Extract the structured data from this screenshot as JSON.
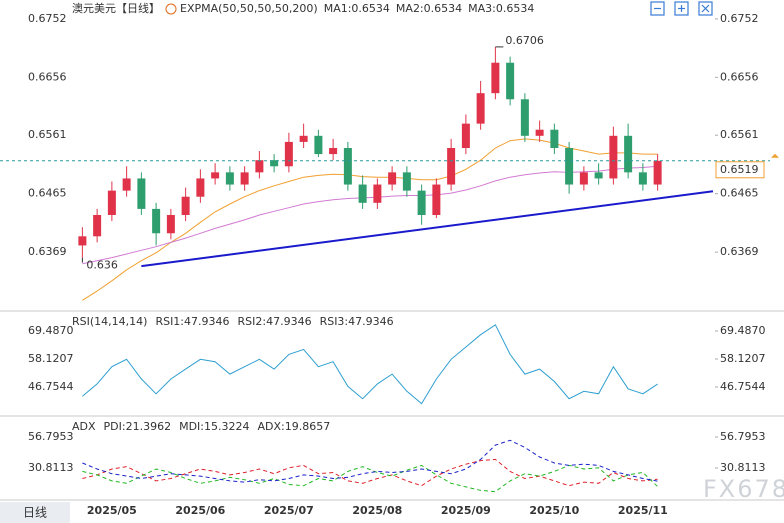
{
  "chart_data": [
    {
      "type": "candlestick",
      "title": "澳元美元",
      "period": "【日线】",
      "indicator": "EXPMA(50,50,50,50,200)",
      "legend": [
        {
          "name": "MA1:0.6534",
          "color": "#2f7fd0"
        },
        {
          "name": "MA2:0.6534",
          "color": "#29a0a0"
        },
        {
          "name": "MA3:0.6534",
          "color": "#2f7fd0"
        }
      ],
      "categories": [
        null,
        null,
        "2025/05",
        null,
        null,
        null,
        null,
        null,
        "2025/06",
        null,
        null,
        null,
        null,
        null,
        "2025/07",
        null,
        null,
        null,
        null,
        null,
        "2025/08",
        null,
        null,
        null,
        null,
        null,
        "2025/09",
        null,
        null,
        null,
        null,
        null,
        "2025/10",
        null,
        null,
        null,
        null,
        null,
        "2025/11",
        null
      ],
      "open": [
        0.638,
        0.6395,
        0.643,
        0.647,
        0.649,
        0.644,
        0.64,
        0.643,
        0.646,
        0.649,
        0.65,
        0.648,
        0.65,
        0.652,
        0.651,
        0.655,
        0.656,
        0.653,
        0.654,
        0.648,
        0.645,
        0.648,
        0.65,
        0.647,
        0.643,
        0.648,
        0.654,
        0.658,
        0.663,
        0.668,
        0.662,
        0.656,
        0.657,
        0.654,
        0.648,
        0.65,
        0.649,
        0.656,
        0.65,
        0.648
      ],
      "high": [
        0.641,
        0.644,
        0.6485,
        0.651,
        0.65,
        0.645,
        0.644,
        0.6475,
        0.6505,
        0.6515,
        0.651,
        0.651,
        0.6535,
        0.653,
        0.6565,
        0.658,
        0.657,
        0.6555,
        0.655,
        0.6495,
        0.649,
        0.651,
        0.651,
        0.648,
        0.649,
        0.6555,
        0.6595,
        0.665,
        0.6706,
        0.669,
        0.663,
        0.6585,
        0.658,
        0.655,
        0.651,
        0.6515,
        0.6575,
        0.658,
        0.6515,
        0.653
      ],
      "low": [
        0.636,
        0.6385,
        0.642,
        0.646,
        0.643,
        0.638,
        0.639,
        0.642,
        0.645,
        0.648,
        0.647,
        0.647,
        0.649,
        0.65,
        0.65,
        0.654,
        0.6525,
        0.652,
        0.647,
        0.644,
        0.644,
        0.647,
        0.646,
        0.6414,
        0.6425,
        0.647,
        0.653,
        0.657,
        0.662,
        0.661,
        0.655,
        0.655,
        0.653,
        0.6465,
        0.647,
        0.648,
        0.648,
        0.649,
        0.647,
        0.647
      ],
      "close": [
        0.6395,
        0.643,
        0.647,
        0.649,
        0.644,
        0.64,
        0.643,
        0.646,
        0.649,
        0.65,
        0.648,
        0.65,
        0.652,
        0.651,
        0.655,
        0.656,
        0.653,
        0.654,
        0.648,
        0.645,
        0.648,
        0.65,
        0.647,
        0.643,
        0.648,
        0.654,
        0.658,
        0.663,
        0.668,
        0.662,
        0.656,
        0.657,
        0.654,
        0.648,
        0.65,
        0.649,
        0.656,
        0.65,
        0.648,
        0.6519
      ],
      "up_color": "#e0334a",
      "down_color": "#2e9e6e",
      "lines": [
        {
          "color": "#f0a030",
          "values": [
            0.629,
            0.6305,
            0.6322,
            0.634,
            0.6355,
            0.6368,
            0.6385,
            0.64,
            0.6418,
            0.6435,
            0.6448,
            0.646,
            0.647,
            0.6478,
            0.6485,
            0.6492,
            0.6495,
            0.6497,
            0.6496,
            0.6493,
            0.6492,
            0.6492,
            0.649,
            0.6488,
            0.6488,
            0.6494,
            0.6505,
            0.652,
            0.654,
            0.6552,
            0.6555,
            0.6553,
            0.6548,
            0.654,
            0.6535,
            0.653,
            0.6532,
            0.6532,
            0.653,
            0.653
          ]
        },
        {
          "color": "#d27ad2",
          "values": [
            0.635,
            0.6355,
            0.636,
            0.6366,
            0.6372,
            0.6378,
            0.6385,
            0.6392,
            0.64,
            0.6408,
            0.6415,
            0.6422,
            0.643,
            0.6436,
            0.6442,
            0.6448,
            0.6452,
            0.6455,
            0.6457,
            0.6458,
            0.6459,
            0.6461,
            0.6462,
            0.6462,
            0.6463,
            0.6466,
            0.6471,
            0.6478,
            0.6486,
            0.6492,
            0.6496,
            0.6499,
            0.6501,
            0.65,
            0.6501,
            0.6502,
            0.6505,
            0.6507,
            0.6508,
            0.651
          ]
        }
      ],
      "trendline": {
        "color": "#1a1acc",
        "values": [
          0.6346,
          0.6469
        ]
      },
      "last_price": 0.6519,
      "ylim": [
        0.6274,
        0.6783
      ],
      "yticks": [
        0.6752,
        0.6656,
        0.6561,
        0.6465,
        0.6369
      ]
    },
    {
      "type": "line",
      "title": "RSI(14,14,14)",
      "series": [
        {
          "name": "RSI1:47.9346",
          "color": "#2e9fd0",
          "values": [
            43,
            48,
            55,
            58,
            50,
            44,
            50,
            54,
            58,
            57,
            52,
            55,
            58,
            54,
            60,
            62,
            55,
            57,
            47,
            42,
            48,
            52,
            45,
            40,
            50,
            58,
            63,
            68,
            72,
            60,
            52,
            54,
            49,
            42,
            45,
            44,
            55,
            46,
            44,
            47.9346
          ]
        }
      ],
      "other_legend": [
        {
          "name": "RSI2:47.9346",
          "color": "#33b050"
        },
        {
          "name": "RSI3:47.9346",
          "color": "#2a6fd8"
        }
      ],
      "ylim": [
        35.38,
        75.98
      ],
      "yticks": [
        {
          "value": 69.487,
          "label": "69.4870"
        },
        58.1207,
        46.7544
      ]
    },
    {
      "type": "line",
      "title": "ADX",
      "series": [
        {
          "name": "PDI:21.3962",
          "color": "#e0202a",
          "values": [
            22,
            25,
            30,
            32,
            26,
            20,
            22,
            26,
            30,
            28,
            25,
            27,
            30,
            26,
            31,
            33,
            26,
            27,
            20,
            18,
            22,
            25,
            20,
            16,
            24,
            30,
            34,
            37,
            38,
            28,
            22,
            24,
            20,
            16,
            19,
            18,
            27,
            22,
            20,
            21.3962
          ]
        },
        {
          "name": "MDI:15.3224",
          "color": "#22b822",
          "values": [
            28,
            25,
            20,
            18,
            24,
            30,
            27,
            22,
            18,
            20,
            23,
            21,
            18,
            22,
            17,
            16,
            22,
            20,
            28,
            32,
            27,
            24,
            29,
            33,
            25,
            18,
            15,
            12,
            11,
            20,
            26,
            24,
            28,
            33,
            30,
            31,
            20,
            25,
            27,
            15.3224
          ]
        },
        {
          "name": "ADX:19.8657",
          "color": "#1a22cc",
          "values": [
            35,
            30,
            26,
            24,
            22,
            24,
            26,
            25,
            24,
            22,
            20,
            19,
            21,
            20,
            22,
            25,
            24,
            22,
            23,
            26,
            28,
            27,
            28,
            30,
            28,
            26,
            30,
            38,
            50,
            54,
            48,
            40,
            35,
            33,
            34,
            33,
            28,
            25,
            22,
            19.8657
          ]
        }
      ],
      "ylim": [
        -6.07,
        71.04
      ],
      "yticks": [
        56.7953,
        30.8113
      ]
    }
  ],
  "button": "日线",
  "watermark": "FX678"
}
